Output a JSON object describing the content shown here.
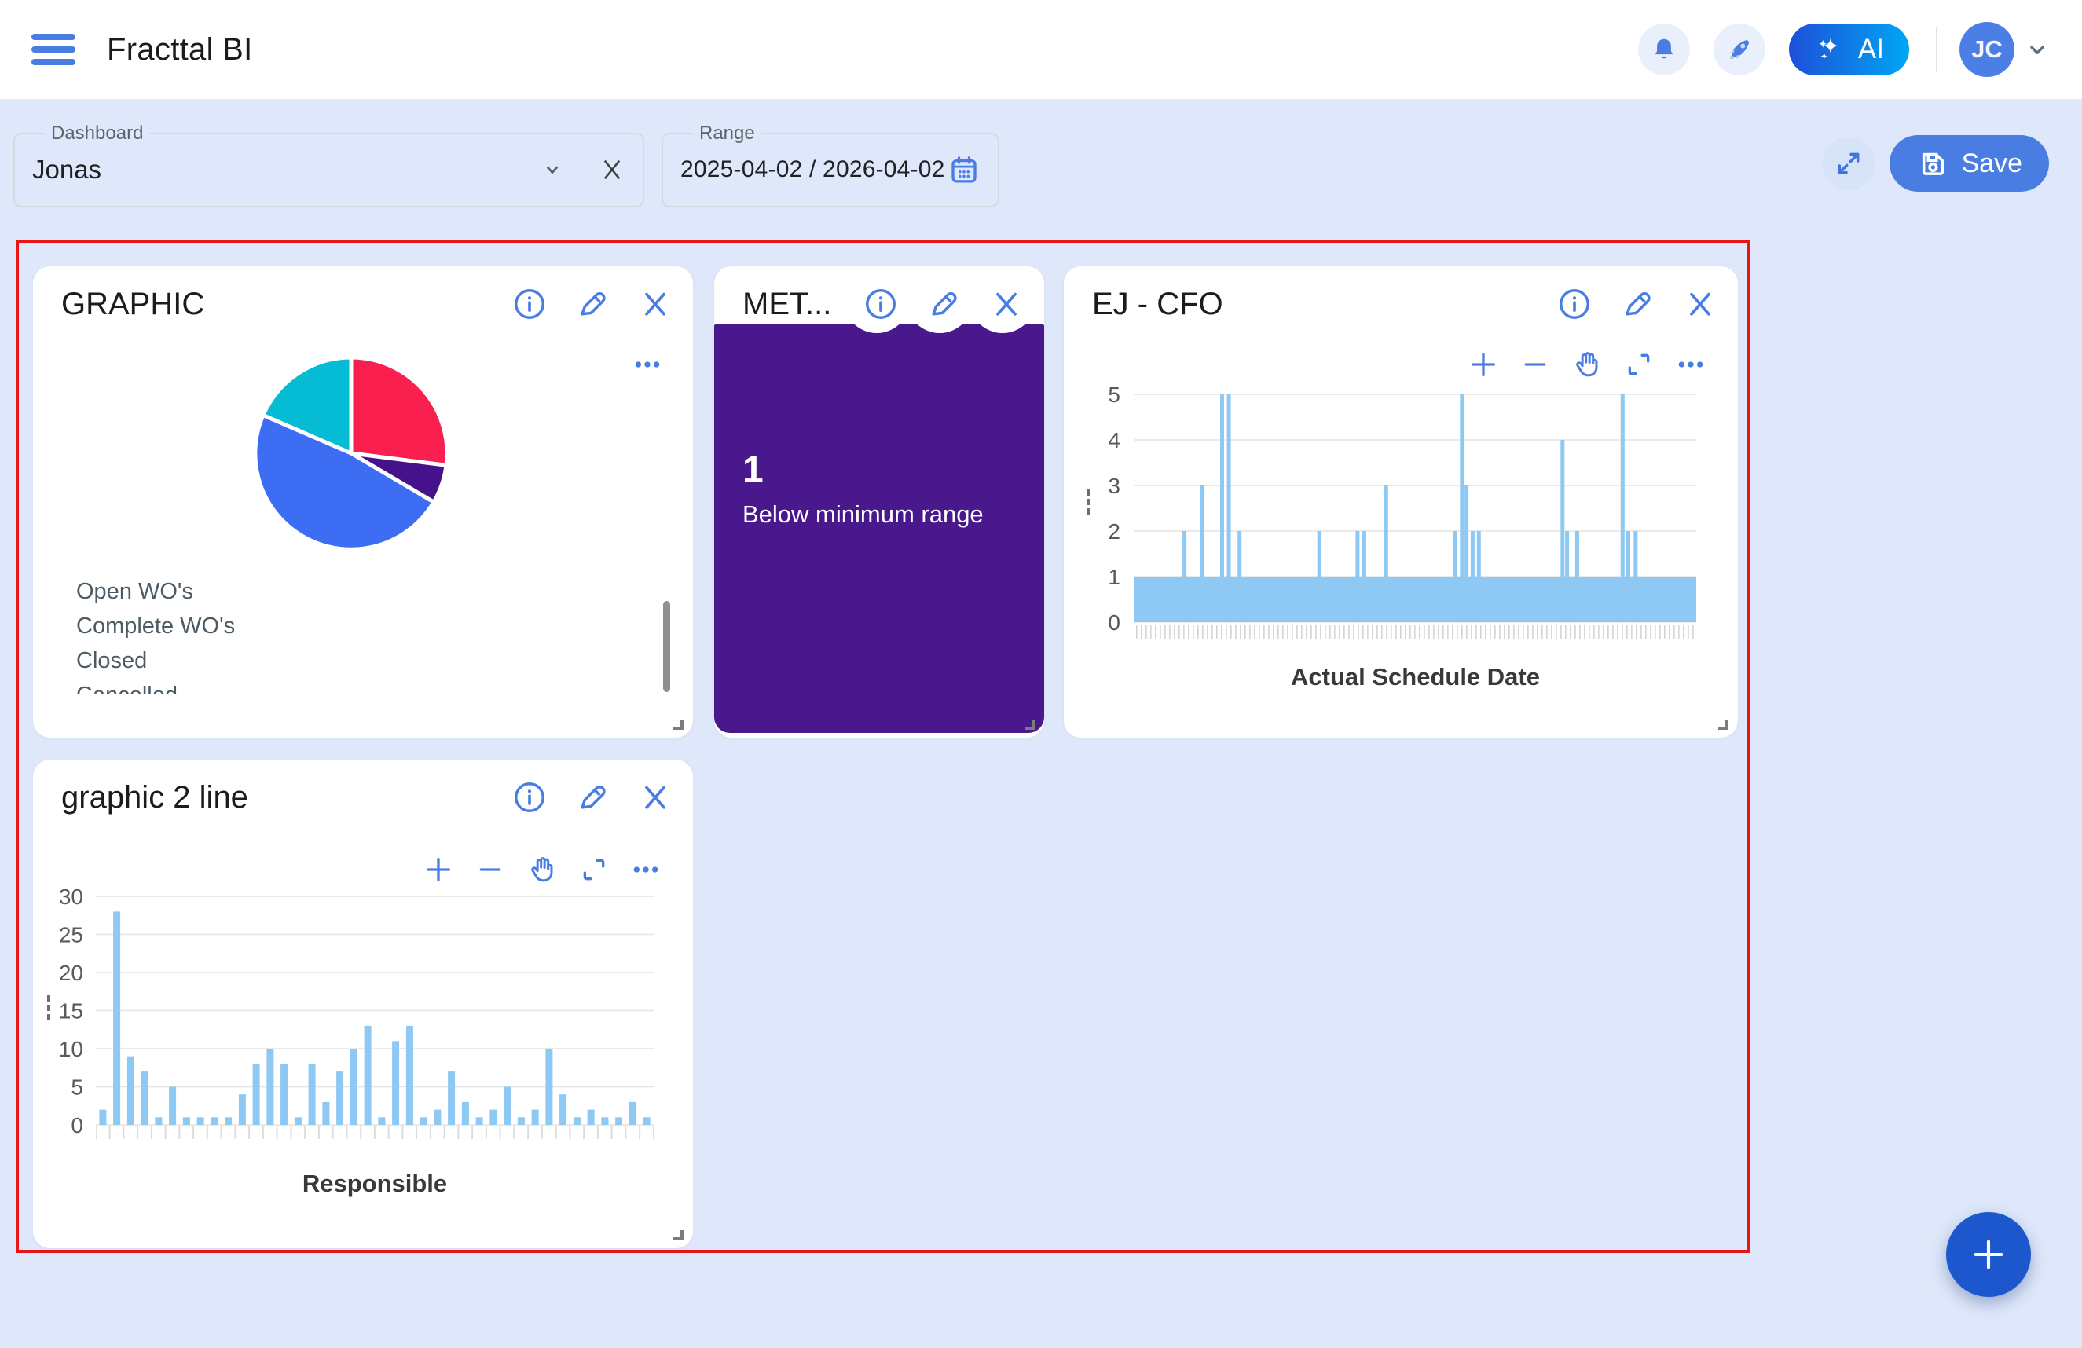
{
  "colors": {
    "accent_blue": "#4A7DE2",
    "page_bg": "#DFE8FA",
    "card_bg": "#FFFFFF",
    "selection_border": "#EB1414",
    "bar_fill": "#8DC9F2",
    "metric_bg": "#48188C",
    "fab_bg": "#1D57CE",
    "ai_gradient": [
      "#1D50D8",
      "#00A6F4"
    ],
    "grid_line": "#E4E4E4",
    "axis_text": "#5A5A5A"
  },
  "header": {
    "app_title": "Fracttal BI",
    "ai_label": "AI",
    "avatar_initials": "JC"
  },
  "filters": {
    "dashboard": {
      "label": "Dashboard",
      "value": "Jonas"
    },
    "range": {
      "label": "Range",
      "value": "2025-04-02 / 2026-04-02"
    },
    "save_label": "Save"
  },
  "widgets": {
    "graphic": {
      "title": "GRAPHIC",
      "legend": [
        "Open WO's",
        "Complete WO's",
        "Closed",
        "Cancelled"
      ]
    },
    "metric": {
      "title": "MET...",
      "value": "1",
      "subtitle": "Below minimum range"
    },
    "ej_cfo": {
      "title": "EJ - CFO"
    },
    "graphic2": {
      "title": "graphic 2 line"
    }
  },
  "icons": {
    "hamburger-menu-icon": "≡",
    "notifications-icon": "bell",
    "whats-new-icon": "rocket",
    "sparkles-icon": "✦",
    "chevron-down-icon": "⌄",
    "clear-icon": "✕",
    "calendar-icon": "calendar",
    "fullscreen-icon": "⛶",
    "save-icon": "floppy-disk",
    "info-icon": "ⓘ",
    "edit-icon": "✎",
    "close-icon": "✕",
    "zoom-in-icon": "+",
    "zoom-out-icon": "−",
    "pan-icon": "✋",
    "reset-zoom-icon": "corners",
    "more-icon": "…",
    "add-icon": "+",
    "resize-handle-icon": "◿"
  },
  "chart_data": [
    {
      "id": "wo-status-pie",
      "type": "pie",
      "legend_position": "bottom-left",
      "slices": [
        {
          "label": "Open WO's",
          "value_pct": 27,
          "color": "#F91F4E"
        },
        {
          "label": "Complete WO's",
          "value_pct": 6.5,
          "color": "#45128C"
        },
        {
          "label": "Closed",
          "value_pct": 48,
          "color": "#3D6DF2"
        },
        {
          "label": "Cancelled",
          "value_pct": 18.5,
          "color": "#06BCD4"
        }
      ]
    },
    {
      "id": "ej-cfo-bars",
      "type": "bar",
      "xlabel": "Actual Schedule Date",
      "ylim": [
        0,
        5
      ],
      "yticks": [
        0,
        1,
        2,
        3,
        4,
        5
      ],
      "bar_color": "#8DC9F2",
      "baseline_value": 1,
      "note": "dense daily bars, all values >= 1; spikes listed as fraction of x-range",
      "spikes": [
        {
          "pos": 0.089,
          "value": 2
        },
        {
          "pos": 0.121,
          "value": 3
        },
        {
          "pos": 0.156,
          "value": 5
        },
        {
          "pos": 0.168,
          "value": 5
        },
        {
          "pos": 0.187,
          "value": 2
        },
        {
          "pos": 0.329,
          "value": 2
        },
        {
          "pos": 0.397,
          "value": 2
        },
        {
          "pos": 0.409,
          "value": 2
        },
        {
          "pos": 0.448,
          "value": 3
        },
        {
          "pos": 0.571,
          "value": 2
        },
        {
          "pos": 0.583,
          "value": 5
        },
        {
          "pos": 0.591,
          "value": 3
        },
        {
          "pos": 0.602,
          "value": 2
        },
        {
          "pos": 0.613,
          "value": 2
        },
        {
          "pos": 0.762,
          "value": 4
        },
        {
          "pos": 0.77,
          "value": 2
        },
        {
          "pos": 0.788,
          "value": 2
        },
        {
          "pos": 0.869,
          "value": 5
        },
        {
          "pos": 0.879,
          "value": 2
        },
        {
          "pos": 0.892,
          "value": 2
        }
      ]
    },
    {
      "id": "responsible-bars",
      "type": "bar",
      "xlabel": "Responsible",
      "ylim": [
        0,
        30
      ],
      "yticks": [
        0,
        5,
        10,
        15,
        20,
        25,
        30
      ],
      "bar_color": "#8DC9F2",
      "values": [
        2,
        28,
        9,
        7,
        1,
        5,
        1,
        1,
        1,
        1,
        4,
        8,
        10,
        8,
        1,
        8,
        3,
        7,
        10,
        13,
        1,
        11,
        13,
        1,
        2,
        7,
        3,
        1,
        2,
        5,
        1,
        2,
        10,
        4,
        1,
        2,
        1,
        1,
        3,
        1
      ]
    }
  ]
}
